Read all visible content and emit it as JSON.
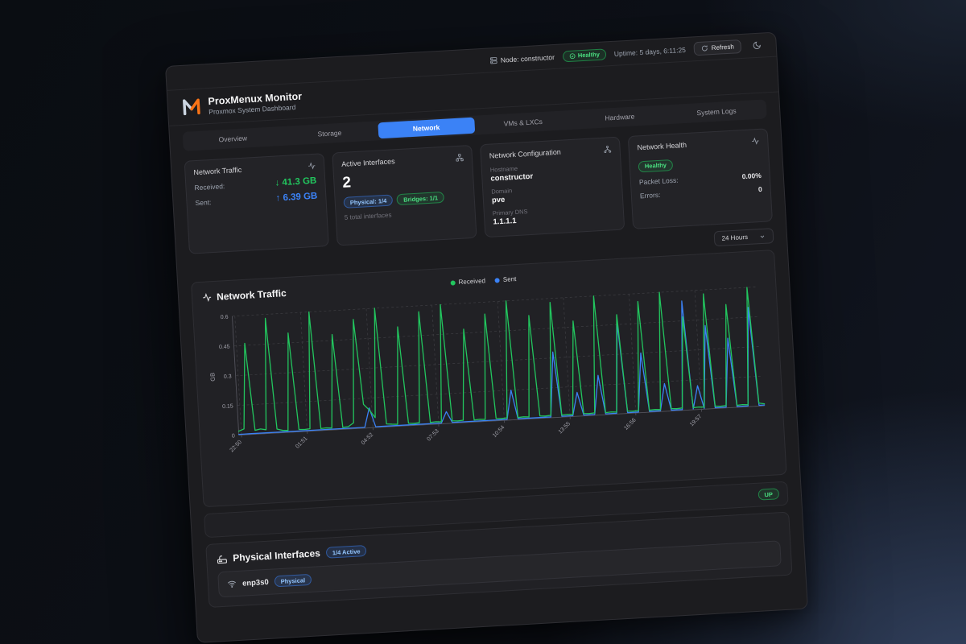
{
  "topbar": {
    "node_label": "Node: constructor",
    "health_badge": "Healthy",
    "uptime": "Uptime: 5 days, 6:11:25",
    "refresh_label": "Refresh"
  },
  "brand": {
    "title": "ProxMenux Monitor",
    "subtitle": "Proxmox System Dashboard"
  },
  "tabs": {
    "items": [
      {
        "label": "Overview"
      },
      {
        "label": "Storage"
      },
      {
        "label": "Network"
      },
      {
        "label": "VMs & LXCs"
      },
      {
        "label": "Hardware"
      },
      {
        "label": "System Logs"
      }
    ]
  },
  "cards": {
    "traffic": {
      "title": "Network Traffic",
      "received_label": "Received:",
      "received_value": "↓ 41.3 GB",
      "sent_label": "Sent:",
      "sent_value": "↑ 6.39 GB"
    },
    "interfaces": {
      "title": "Active Interfaces",
      "count": "2",
      "physical_badge": "Physical: 1/4",
      "bridges_badge": "Bridges: 1/1",
      "total_note": "5 total interfaces"
    },
    "config": {
      "title": "Network Configuration",
      "hostname_label": "Hostname",
      "hostname": "constructor",
      "domain_label": "Domain",
      "domain": "pve",
      "dns_label": "Primary DNS",
      "dns": "1.1.1.1"
    },
    "health": {
      "title": "Network Health",
      "status_badge": "Healthy",
      "packet_loss_label": "Packet Loss:",
      "packet_loss": "0.00%",
      "errors_label": "Errors:",
      "errors": "0"
    }
  },
  "time_range": {
    "selected": "24 Hours"
  },
  "chart": {
    "title": "Network Traffic"
  },
  "chart_data": {
    "type": "line",
    "title": "Network Traffic",
    "ylabel": "GB",
    "ylim": [
      0,
      0.6
    ],
    "yticks": [
      0,
      0.15,
      0.3,
      0.45,
      0.6
    ],
    "grid": true,
    "legend_position": "top",
    "legend": [
      "Received",
      "Sent"
    ],
    "colors": {
      "received": "#22c55e",
      "sent": "#3b82f6"
    },
    "x_ticks": {
      "labels": [
        "22:50",
        "01:51",
        "04:52",
        "07:53",
        "10:54",
        "13:55",
        "16:56",
        "19:57"
      ],
      "fracs": [
        0.005,
        0.13,
        0.255,
        0.38,
        0.505,
        0.63,
        0.755,
        0.88
      ]
    },
    "series": [
      {
        "name": "Received",
        "values": [
          0.02,
          0.03,
          0.46,
          0.02,
          0.025,
          0.02,
          0.58,
          0.02,
          0.012,
          0.01,
          0.5,
          0.012,
          0.01,
          0.012,
          0.6,
          0.01,
          0.012,
          0.01,
          0.48,
          0.01,
          0.012,
          0.03,
          0.55,
          0.12,
          0.09,
          0.05,
          0.6,
          0.015,
          0.012,
          0.01,
          0.5,
          0.012,
          0.01,
          0.012,
          0.57,
          0.01,
          0.012,
          0.01,
          0.6,
          0.012,
          0.01,
          0.012,
          0.47,
          0.01,
          0.012,
          0.01,
          0.54,
          0.012,
          0.01,
          0.012,
          0.6,
          0.01,
          0.012,
          0.01,
          0.52,
          0.012,
          0.01,
          0.012,
          0.58,
          0.01,
          0.012,
          0.01,
          0.48,
          0.012,
          0.01,
          0.012,
          0.6,
          0.01,
          0.012,
          0.01,
          0.5,
          0.012,
          0.01,
          0.012,
          0.56,
          0.01,
          0.012,
          0.01,
          0.6,
          0.012,
          0.01,
          0.012,
          0.47,
          0.01,
          0.012,
          0.01,
          0.58,
          0.012,
          0.01,
          0.012,
          0.52,
          0.01,
          0.012,
          0.01,
          0.6,
          0.015,
          0.01
        ]
      },
      {
        "name": "Sent",
        "values": [
          0.004,
          0.004,
          0.004,
          0.004,
          0.004,
          0.004,
          0.004,
          0.004,
          0.004,
          0.004,
          0.004,
          0.004,
          0.004,
          0.004,
          0.004,
          0.004,
          0.004,
          0.004,
          0.004,
          0.004,
          0.004,
          0.004,
          0.004,
          0.004,
          0.1,
          0.004,
          0.004,
          0.004,
          0.004,
          0.004,
          0.004,
          0.004,
          0.004,
          0.004,
          0.004,
          0.004,
          0.004,
          0.004,
          0.06,
          0.004,
          0.004,
          0.004,
          0.004,
          0.004,
          0.004,
          0.004,
          0.004,
          0.004,
          0.004,
          0.004,
          0.15,
          0.004,
          0.004,
          0.004,
          0.004,
          0.004,
          0.004,
          0.004,
          0.33,
          0.004,
          0.004,
          0.004,
          0.12,
          0.004,
          0.004,
          0.004,
          0.2,
          0.004,
          0.004,
          0.004,
          0.46,
          0.004,
          0.004,
          0.004,
          0.3,
          0.004,
          0.004,
          0.004,
          0.14,
          0.004,
          0.004,
          0.004,
          0.55,
          0.004,
          0.12,
          0.004,
          0.42,
          0.004,
          0.004,
          0.004,
          0.35,
          0.004,
          0.004,
          0.004,
          0.5,
          0.004,
          0.004
        ]
      }
    ]
  },
  "status_row": {
    "badge": "UP"
  },
  "physical": {
    "title": "Physical Interfaces",
    "active_badge": "1/4 Active",
    "rows": [
      {
        "name": "enp3s0",
        "type_badge": "Physical"
      }
    ]
  },
  "colors": {
    "accent_blue": "#3b82f6",
    "status_green": "#22c55e",
    "brand_orange": "#f97316"
  }
}
